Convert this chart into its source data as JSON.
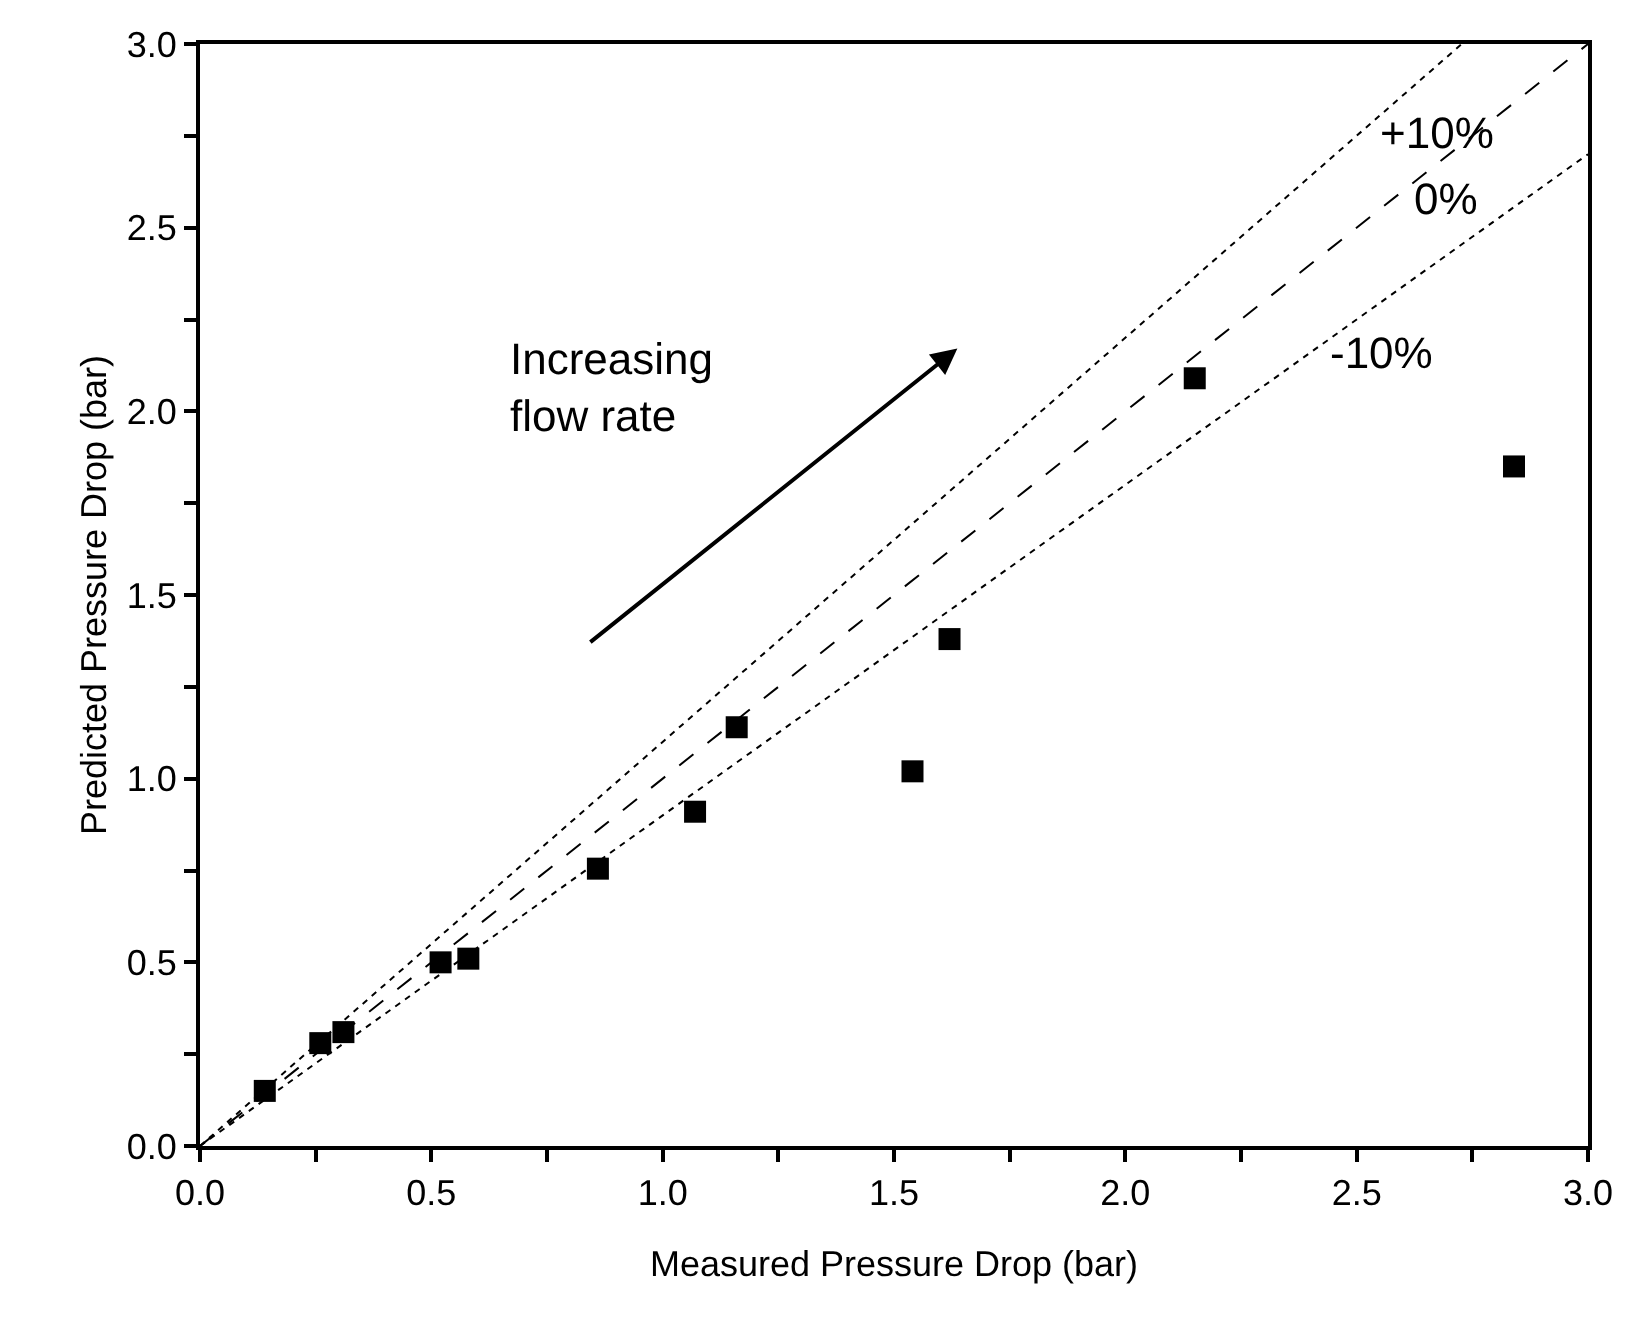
{
  "chart_data": {
    "type": "scatter",
    "xlabel": "Measured Pressure Drop (bar)",
    "ylabel": "Predicted Pressure Drop (bar)",
    "series": [
      {
        "color": "#000000",
        "marker": "square",
        "x": [
          0.14,
          0.26,
          0.31,
          0.52,
          0.58,
          0.86,
          1.07,
          1.16,
          1.54,
          1.62,
          2.15,
          2.84
        ],
        "values": [
          0.15,
          0.28,
          0.31,
          0.5,
          0.51,
          0.755,
          0.91,
          1.14,
          1.02,
          1.38,
          2.09,
          1.85
        ]
      },
      {
        "type": "line",
        "name": "+10%",
        "color": "#000000",
        "line_style": "dotted",
        "x": [
          0,
          2.727
        ],
        "values": [
          0,
          3
        ]
      },
      {
        "type": "line",
        "name": "0%",
        "color": "#000000",
        "line_style": "dashed",
        "x": [
          0,
          3
        ],
        "values": [
          0,
          3
        ]
      },
      {
        "type": "line",
        "name": "-10%",
        "color": "#000000",
        "line_style": "dotted",
        "x": [
          0,
          3
        ],
        "values": [
          0,
          2.7
        ]
      }
    ],
    "annotations": [
      "Increasing\nflow rate"
    ],
    "xlim": [
      0,
      3
    ],
    "ylim": [
      0,
      3
    ],
    "xticks": [
      {
        "value": 0,
        "label": "0.0"
      },
      {
        "value": 0.25,
        "label": null
      },
      0.5,
      {
        "value": 0.75,
        "label": null
      },
      {
        "value": 1,
        "label": "1.0"
      },
      {
        "value": 1.25,
        "label": null
      },
      1.5,
      {
        "value": 1.75,
        "label": null
      },
      {
        "value": 2,
        "label": "2.0"
      },
      {
        "value": 2.25,
        "label": null
      },
      2.5,
      {
        "value": 2.75,
        "label": null
      },
      {
        "value": 3,
        "label": "3.0"
      }
    ],
    "yticks": [
      {
        "value": 0,
        "label": "0.0"
      },
      {
        "value": 0.25,
        "label": null
      },
      0.5,
      {
        "value": 0.75,
        "label": null
      },
      {
        "value": 1,
        "label": "1.0"
      },
      {
        "value": 1.25,
        "label": null
      },
      1.5,
      {
        "value": 1.75,
        "label": null
      },
      {
        "value": 2,
        "label": "2.0"
      },
      {
        "value": 2.25,
        "label": null
      },
      2.5,
      {
        "value": 2.75,
        "label": null
      },
      {
        "value": 3,
        "label": "3.0"
      }
    ],
    "grid": false,
    "legend": false
  }
}
